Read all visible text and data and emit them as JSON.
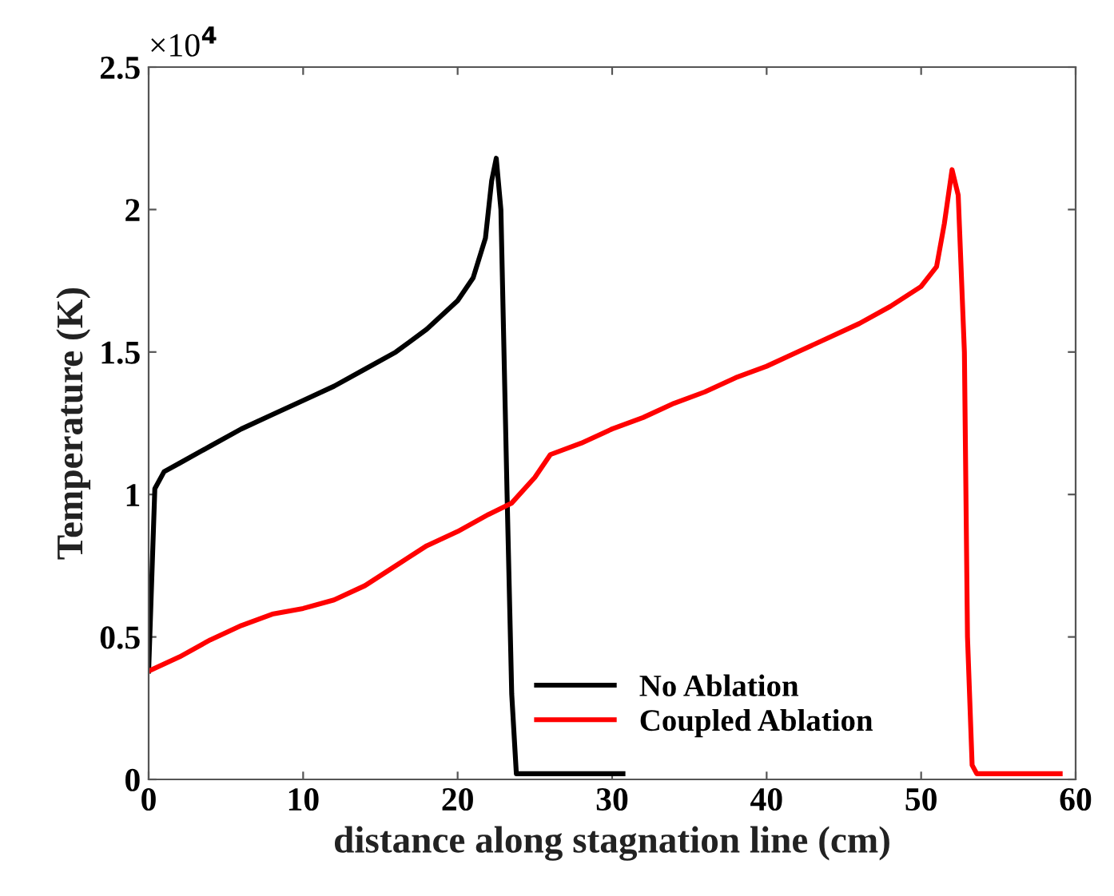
{
  "chart_data": {
    "type": "line",
    "xlabel": "distance along stagnation line (cm)",
    "ylabel": "Temperature (K)",
    "annotations": [
      "×10$^{4}$"
    ],
    "xlim": [
      0,
      60
    ],
    "xticks": [
      0,
      10,
      20,
      30,
      40,
      50,
      60
    ],
    "ylim": [
      0,
      2.5
    ],
    "yticks": [
      0,
      0.5,
      1,
      1.5,
      2,
      2.5
    ],
    "grid": false,
    "legend": "bottom",
    "line_style": "solid",
    "marker": "none",
    "series": [
      {
        "name": "No Ablation",
        "color": "#000000",
        "x": [
          0,
          0.2,
          0.4,
          1,
          2,
          4,
          6,
          8,
          10,
          12,
          14,
          16,
          18,
          20,
          21,
          21.8,
          22.2,
          22.5,
          22.8,
          23.2,
          23.5,
          23.8,
          30.7
        ],
        "values": [
          0.38,
          0.7,
          1.02,
          1.08,
          1.11,
          1.17,
          1.23,
          1.28,
          1.33,
          1.38,
          1.44,
          1.5,
          1.58,
          1.68,
          1.76,
          1.9,
          2.1,
          2.18,
          2.0,
          1.0,
          0.3,
          0.02,
          0.02
        ]
      },
      {
        "name": "Coupled Ablation",
        "color": "#ff0000",
        "x": [
          0,
          2,
          4,
          6,
          8,
          10,
          12,
          14,
          16,
          18,
          20,
          22,
          23.5,
          25,
          26,
          28,
          30,
          32,
          34,
          36,
          38,
          40,
          42,
          44,
          46,
          48,
          50,
          51,
          51.5,
          52,
          52.4,
          52.8,
          53.0,
          53.3,
          53.6,
          59
        ],
        "values": [
          0.38,
          0.43,
          0.49,
          0.54,
          0.58,
          0.6,
          0.63,
          0.68,
          0.75,
          0.82,
          0.87,
          0.93,
          0.97,
          1.06,
          1.14,
          1.18,
          1.23,
          1.27,
          1.32,
          1.36,
          1.41,
          1.45,
          1.5,
          1.55,
          1.6,
          1.66,
          1.73,
          1.8,
          1.95,
          2.14,
          2.05,
          1.5,
          0.5,
          0.05,
          0.02,
          0.02
        ]
      }
    ]
  }
}
